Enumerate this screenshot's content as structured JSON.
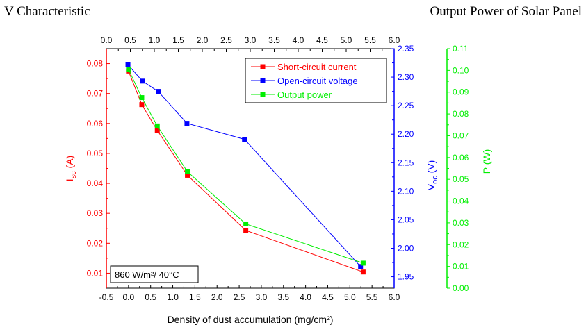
{
  "captions": {
    "left": "V Characteristic",
    "right": "Output Power of Solar Panel"
  },
  "chart_data": {
    "type": "line",
    "x": [
      0.0,
      0.3,
      0.65,
      1.33,
      2.65,
      5.3
    ],
    "x_top": [
      0.45,
      0.75,
      1.08,
      1.68,
      2.88,
      5.3
    ],
    "xlabel": "Density of dust accumulation (mg/cm²)",
    "xlim": [
      -0.5,
      6.0
    ],
    "xticks": [
      "-0.5",
      "0.0",
      "0.5",
      "1.0",
      "1.5",
      "2.0",
      "2.5",
      "3.0",
      "3.5",
      "4.0",
      "4.5",
      "5.0",
      "5.5",
      "6.0"
    ],
    "xlim_top": [
      0.0,
      6.0
    ],
    "xticks_top": [
      "0.0",
      "0.5",
      "1.0",
      "1.5",
      "2.0",
      "2.5",
      "3.0",
      "3.5",
      "4.0",
      "4.5",
      "5.0",
      "5.5",
      "6.0"
    ],
    "axes": {
      "left": {
        "label_main": "I",
        "label_sub": "sc",
        "label_unit": " (A)",
        "color": "#ff0000",
        "lim": [
          0.005,
          0.085
        ],
        "ticks": [
          "0.01",
          "0.02",
          "0.03",
          "0.04",
          "0.05",
          "0.06",
          "0.07",
          "0.08"
        ]
      },
      "right1": {
        "label_main": "V",
        "label_sub": "oc",
        "label_unit": " (V)",
        "color": "#0000ff",
        "lim": [
          1.93,
          2.35
        ],
        "ticks": [
          "1.95",
          "2.00",
          "2.05",
          "2.10",
          "2.15",
          "2.20",
          "2.25",
          "2.30",
          "2.35"
        ]
      },
      "right2": {
        "label": "P (W)",
        "color": "#00ee00",
        "lim": [
          0.0,
          0.11
        ],
        "ticks": [
          "0.00",
          "0.01",
          "0.02",
          "0.03",
          "0.04",
          "0.05",
          "0.06",
          "0.07",
          "0.08",
          "0.09",
          "0.10",
          "0.11"
        ]
      }
    },
    "series": [
      {
        "name": "Short-circuit current",
        "color": "#ff0000",
        "axis": "left",
        "x_axis": "bottom",
        "values": [
          0.0775,
          0.0663,
          0.0577,
          0.0427,
          0.0243,
          0.0104
        ]
      },
      {
        "name": "Open-circuit voltage",
        "color": "#0000ff",
        "axis": "right1",
        "x_axis": "top",
        "values": [
          2.322,
          2.293,
          2.275,
          2.219,
          2.191,
          1.968
        ]
      },
      {
        "name": "Output power",
        "color": "#00ee00",
        "axis": "right2",
        "x_axis": "bottom",
        "values": [
          0.1005,
          0.0875,
          0.0745,
          0.0535,
          0.0295,
          0.0115
        ]
      }
    ],
    "annotation": "860 W/m²/ 40°C",
    "legend_position": "top-right",
    "grid": false
  }
}
